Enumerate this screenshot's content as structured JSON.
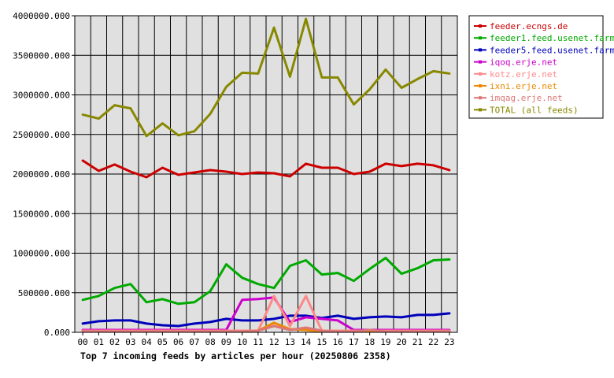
{
  "chart_data": {
    "type": "line",
    "title": "",
    "caption": "Top 7 incoming feeds by articles per hour (20250806 2358)",
    "xlabel": "",
    "ylabel": "",
    "categories": [
      "00",
      "01",
      "02",
      "03",
      "04",
      "05",
      "06",
      "07",
      "08",
      "09",
      "10",
      "11",
      "12",
      "13",
      "14",
      "15",
      "16",
      "17",
      "18",
      "19",
      "20",
      "21",
      "22",
      "23"
    ],
    "ylim": [
      0,
      4000000
    ],
    "yticks": [
      "0.000",
      "500000.000",
      "1000000.000",
      "1500000.000",
      "2000000.000",
      "2500000.000",
      "3000000.000",
      "3500000.000",
      "4000000.000"
    ],
    "grid": true,
    "legend_position": "top-right",
    "series": [
      {
        "name": "feeder.ecngs.de",
        "color": "#cc0000",
        "values": [
          2170000,
          2040000,
          2120000,
          2030000,
          1960000,
          2080000,
          1990000,
          2020000,
          2050000,
          2030000,
          2000000,
          2020000,
          2010000,
          1970000,
          2130000,
          2080000,
          2080000,
          2000000,
          2030000,
          2130000,
          2100000,
          2130000,
          2110000,
          2050000
        ]
      },
      {
        "name": "feeder1.feed.usenet.farm",
        "color": "#00aa00",
        "values": [
          410000,
          460000,
          560000,
          610000,
          380000,
          420000,
          360000,
          380000,
          520000,
          860000,
          690000,
          610000,
          560000,
          840000,
          910000,
          730000,
          750000,
          650000,
          800000,
          940000,
          740000,
          810000,
          910000,
          920000
        ]
      },
      {
        "name": "feeder5.feed.usenet.farm",
        "color": "#0000bb",
        "values": [
          110000,
          140000,
          150000,
          150000,
          110000,
          90000,
          80000,
          110000,
          130000,
          170000,
          150000,
          150000,
          170000,
          210000,
          210000,
          180000,
          210000,
          170000,
          190000,
          200000,
          190000,
          220000,
          220000,
          240000
        ]
      },
      {
        "name": "iqoq.erje.net",
        "color": "#cc00cc",
        "values": [
          30000,
          30000,
          30000,
          30000,
          30000,
          30000,
          30000,
          30000,
          30000,
          30000,
          410000,
          420000,
          440000,
          130000,
          190000,
          170000,
          150000,
          30000,
          30000,
          30000,
          30000,
          30000,
          30000,
          30000
        ]
      },
      {
        "name": "kotz.erje.net",
        "color": "#ff8888",
        "values": [
          20000,
          20000,
          20000,
          20000,
          20000,
          20000,
          20000,
          20000,
          20000,
          20000,
          20000,
          20000,
          460000,
          80000,
          460000,
          20000,
          20000,
          20000,
          20000,
          20000,
          20000,
          20000,
          20000,
          20000
        ]
      },
      {
        "name": "ixni.erje.net",
        "color": "#ee8800",
        "values": [
          10000,
          10000,
          10000,
          10000,
          10000,
          10000,
          10000,
          10000,
          10000,
          10000,
          10000,
          20000,
          120000,
          40000,
          30000,
          10000,
          10000,
          10000,
          10000,
          10000,
          10000,
          10000,
          10000,
          10000
        ]
      },
      {
        "name": "imqag.erje.net",
        "color": "#dd7777",
        "values": [
          10000,
          10000,
          10000,
          10000,
          10000,
          10000,
          10000,
          10000,
          10000,
          10000,
          10000,
          20000,
          80000,
          30000,
          60000,
          20000,
          10000,
          10000,
          30000,
          10000,
          10000,
          10000,
          10000,
          10000
        ]
      },
      {
        "name": "TOTAL (all feeds)",
        "color": "#888800",
        "values": [
          2750000,
          2700000,
          2870000,
          2830000,
          2480000,
          2640000,
          2490000,
          2540000,
          2760000,
          3100000,
          3280000,
          3270000,
          3850000,
          3230000,
          3960000,
          3220000,
          3220000,
          2880000,
          3070000,
          3320000,
          3090000,
          3200000,
          3300000,
          3270000
        ]
      }
    ]
  }
}
